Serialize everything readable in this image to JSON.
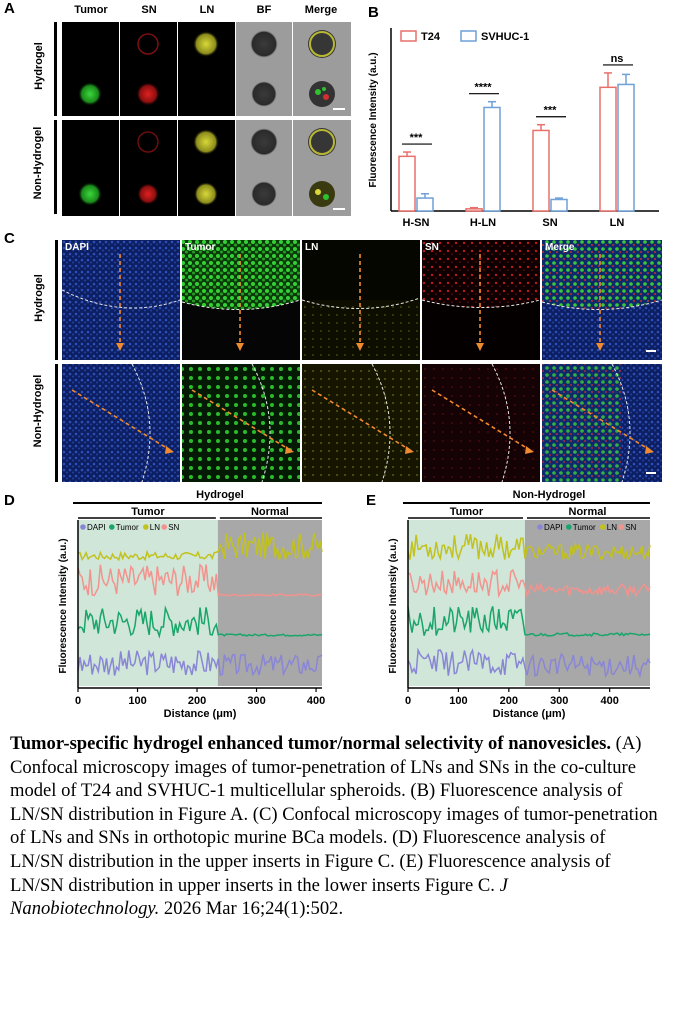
{
  "panelA": {
    "label": "A",
    "columns": [
      "Tumor",
      "SN",
      "LN",
      "BF",
      "Merge"
    ],
    "rows": [
      "Hydrogel",
      "Non-Hydrogel"
    ]
  },
  "panelC": {
    "label": "C",
    "columns": [
      "DAPI",
      "Tumor",
      "LN",
      "SN",
      "Merge"
    ],
    "rows": [
      "Hydrogel",
      "Non-Hydrogel"
    ]
  },
  "caption": {
    "title": "Tumor-specific hydrogel enhanced tumor/normal selectivity of nanovesicles.",
    "body": " (A) Confocal microscopy images of tumor-penetration of LNs and SNs in the co-culture model of T24 and SVHUC-1 multicellular spheroids. (B) Fluorescence analysis of LN/SN distribution in Figure A. (C) Confocal microscopy images of tumor-penetration of LNs and SNs in orthotopic murine BCa models. (D) Fluorescence analysis of LN/SN distribution in the upper inserts in Figure C. (E) Fluorescence analysis of LN/SN distribution in upper inserts in the lower inserts Figure C. ",
    "journal": "J Nanobiotechnology.",
    "citation": " 2026 Mar 16;24(1):502."
  },
  "colors": {
    "t24": "#e8706b",
    "svhuc": "#6fa0d8",
    "dapi": "#8a86d6",
    "tumor": "#1aa56a",
    "ln": "#c2c21c",
    "sn": "#f2938e",
    "tumor_region": "#cfe6d8",
    "normal_region": "#a8a8a8"
  },
  "chart_data": [
    {
      "panel": "B",
      "type": "bar",
      "ylabel": "Fluorescence Intensity (a.u.)",
      "categories": [
        "H-SN",
        "H-LN",
        "SN",
        "LN"
      ],
      "series": [
        {
          "name": "T24",
          "values": [
            38,
            1.5,
            56,
            86
          ],
          "errors": [
            3,
            0.8,
            4,
            10
          ]
        },
        {
          "name": "SVHUC-1",
          "values": [
            9,
            72,
            8,
            88
          ],
          "errors": [
            3,
            4,
            1,
            7
          ]
        }
      ],
      "significance": [
        "***",
        "****",
        "***",
        "ns"
      ],
      "ylim": [
        0,
        105
      ]
    },
    {
      "panel": "D",
      "type": "line",
      "title": "Hydrogel",
      "regions": [
        "Tumor",
        "Normal"
      ],
      "legend": [
        "DAPI",
        "Tumor",
        "LN",
        "SN"
      ],
      "xlabel": "Distance (μm)",
      "ylabel": "Fluorescence Intensity (a.u.)",
      "xticks": [
        0,
        100,
        200,
        300,
        400
      ],
      "xlim": [
        0,
        410
      ],
      "boundary": 235
    },
    {
      "panel": "E",
      "type": "line",
      "title": "Non-Hydrogel",
      "regions": [
        "Tumor",
        "Normal"
      ],
      "legend": [
        "DAPI",
        "Tumor",
        "LN",
        "SN"
      ],
      "xlabel": "Distance (μm)",
      "ylabel": "Fluorescence Intensity (a.u.)",
      "xticks": [
        0,
        100,
        200,
        300,
        400
      ],
      "xlim": [
        0,
        480
      ],
      "boundary": 232
    }
  ]
}
